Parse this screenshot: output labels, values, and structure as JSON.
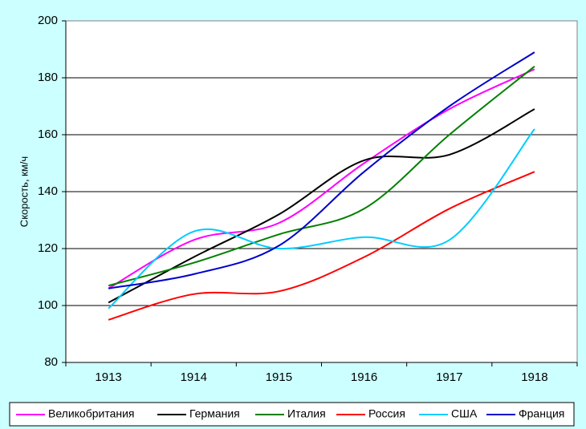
{
  "chart_data": {
    "type": "line",
    "x": [
      "1913",
      "1914",
      "1915",
      "1916",
      "1917",
      "1918"
    ],
    "xlabel": "",
    "ylabel": "Скорость, км/ч",
    "ylim": [
      80,
      200
    ],
    "yticks": [
      "80",
      "100",
      "120",
      "140",
      "160",
      "180",
      "200"
    ],
    "grid": true,
    "legend_position": "bottom",
    "series": [
      {
        "name": "Великобритания",
        "color": "#ff00ff",
        "values": [
          106,
          123,
          129,
          150,
          169,
          183
        ]
      },
      {
        "name": "Германия",
        "color": "#000000",
        "values": [
          101,
          117,
          132,
          151,
          153,
          169
        ]
      },
      {
        "name": "Италия",
        "color": "#008000",
        "values": [
          107,
          115,
          125,
          134,
          160,
          184
        ]
      },
      {
        "name": "Россия",
        "color": "#ff0000",
        "values": [
          95,
          104,
          105,
          117,
          134,
          147
        ]
      },
      {
        "name": "США",
        "color": "#00ccff",
        "values": [
          99,
          126,
          120,
          124,
          123,
          162
        ]
      },
      {
        "name": "Франция",
        "color": "#0000cc",
        "values": [
          106,
          111,
          121,
          147,
          170,
          189
        ]
      }
    ]
  }
}
